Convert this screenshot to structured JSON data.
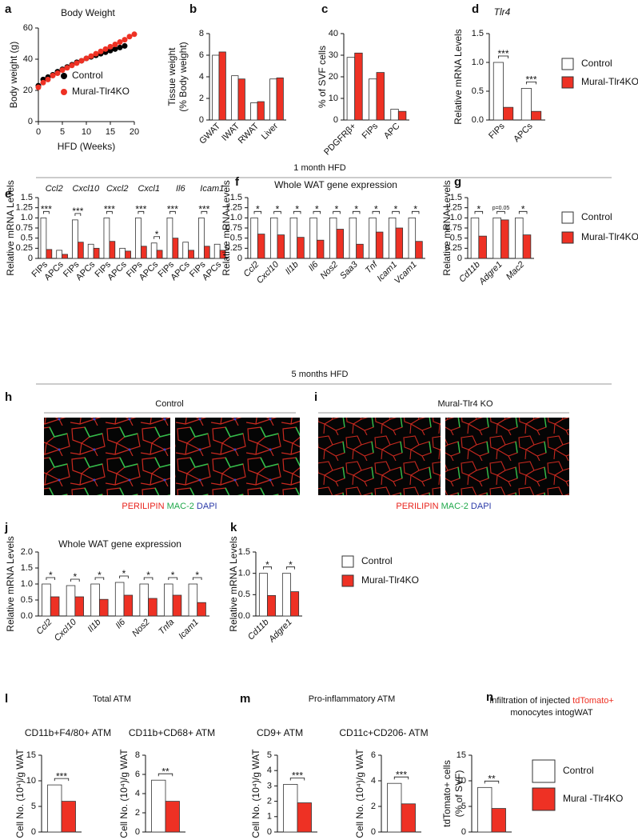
{
  "sections": [
    "1 month HFD",
    "5 months HFD"
  ],
  "images": [
    {
      "panel": "h",
      "label": "Control",
      "caption": [
        "PERILIPIN",
        "MAC-2",
        "DAPI"
      ]
    },
    {
      "panel": "i",
      "label": "Mural-Tlr4 KO",
      "caption": [
        "PERILIPIN",
        "MAC-2",
        "DAPI"
      ]
    }
  ],
  "groups": [
    {
      "panel": "l",
      "title": "Total ATM"
    },
    {
      "panel": "m",
      "title": "Pro-inflammatory ATM"
    }
  ],
  "chart_data": [
    {
      "type": "line",
      "panel": "a",
      "title": "Body Weight",
      "xlabel": "HFD (Weeks)",
      "ylabel": "Body weight (g)",
      "x": [
        0,
        1,
        2,
        3,
        4,
        5,
        6,
        7,
        8,
        9,
        10,
        11,
        12,
        13,
        14,
        15,
        16,
        17,
        18,
        19,
        20
      ],
      "xlim": [
        0,
        20
      ],
      "xticks": [
        0,
        5,
        10,
        15,
        20
      ],
      "ylim": [
        0,
        60
      ],
      "yticks": [
        0,
        20,
        40,
        60
      ],
      "series": [
        {
          "name": "Control",
          "color": "#000000",
          "values": [
            23,
            27,
            28.5,
            30,
            32,
            33.5,
            35,
            36.5,
            38,
            39,
            40.5,
            41.5,
            42.5,
            43.5,
            44.5,
            45.5,
            46.5,
            47.5,
            48.5,
            null,
            null
          ]
        },
        {
          "name": "Mural-Tlr4KO",
          "color": "#ee3124",
          "values": [
            22,
            25,
            27,
            29.5,
            31,
            33,
            34.5,
            36,
            37.5,
            39,
            40.5,
            42,
            43.5,
            45,
            46.5,
            48,
            49.5,
            51,
            52.5,
            54.5,
            56
          ]
        }
      ]
    },
    {
      "type": "bar",
      "panel": "b",
      "ylabel": [
        "Tissue weight",
        "(% Body weight)"
      ],
      "categories": [
        "GWAT",
        "IWAT",
        "RWAT",
        "Liver"
      ],
      "ylim": [
        0,
        8
      ],
      "yticks": [
        0,
        2,
        4,
        6,
        8
      ],
      "series": [
        {
          "color": "#ffffff",
          "values": [
            6.0,
            4.1,
            1.6,
            3.8
          ]
        },
        {
          "color": "#ee3124",
          "values": [
            6.3,
            3.8,
            1.7,
            3.9
          ]
        }
      ]
    },
    {
      "type": "bar",
      "panel": "c",
      "ylabel": "% of SVF cells",
      "categories": [
        "PDGFRβ+",
        "FIPs",
        "APC"
      ],
      "ylim": [
        0,
        40
      ],
      "yticks": [
        0,
        10,
        20,
        30,
        40
      ],
      "series": [
        {
          "color": "#ffffff",
          "values": [
            29,
            19,
            5
          ]
        },
        {
          "color": "#ee3124",
          "values": [
            31,
            22,
            4
          ]
        }
      ]
    },
    {
      "type": "bar",
      "panel": "d",
      "title": "Tlr4",
      "ylabel": "Relative mRNA Levels",
      "categories": [
        "FIPs",
        "APCs"
      ],
      "significance": [
        "***",
        "***"
      ],
      "ylim": [
        0,
        1.5
      ],
      "yticks": [
        {
          "value": 0,
          "label": "0.0"
        },
        0.5,
        {
          "value": 1,
          "label": "1.0"
        },
        1.5
      ],
      "series": [
        {
          "name": "Control",
          "color": "#ffffff",
          "values": [
            1.0,
            0.55
          ]
        },
        {
          "name": "Mural-Tlr4KO",
          "color": "#ee3124",
          "values": [
            0.22,
            0.15
          ]
        }
      ]
    },
    {
      "type": "bar",
      "panel": "e",
      "ylabel": "Relative mRNA Levels",
      "groups": [
        "Ccl2",
        "Cxcl10",
        "Cxcl2",
        "Cxcl1",
        "Il6",
        "Icam1"
      ],
      "categories": [
        "FIPs",
        "APCs",
        "FIPs",
        "APCs",
        "FIPs",
        "APCs",
        "FIPs",
        "APCs",
        "FIPs",
        "APCs",
        "FIPs",
        "APCs"
      ],
      "significance": [
        "***",
        null,
        "***",
        null,
        "***",
        null,
        "***",
        "*",
        "***",
        null,
        "***",
        null
      ],
      "ylim": [
        0,
        1.5
      ],
      "yticks": [
        0,
        0.25,
        0.5,
        0.75,
        {
          "value": 1,
          "label": "1.0"
        },
        1.25,
        1.5
      ],
      "series": [
        {
          "color": "#ffffff",
          "values": [
            1.0,
            0.2,
            0.95,
            0.35,
            1.0,
            0.25,
            1.0,
            0.38,
            1.0,
            0.4,
            1.0,
            0.35
          ]
        },
        {
          "color": "#ee3124",
          "values": [
            0.22,
            0.1,
            0.4,
            0.25,
            0.42,
            0.18,
            0.3,
            0.2,
            0.5,
            0.2,
            0.3,
            0.2
          ]
        }
      ]
    },
    {
      "type": "bar",
      "panel": "f",
      "title": "Whole WAT gene expression",
      "ylabel": "Relative mRNA Levels",
      "categories": [
        "Ccl2",
        "Cxcl10",
        "Il1b",
        "Il6",
        "Nos2",
        "Saa3",
        "Tnf",
        "Icam1",
        "Vcam1"
      ],
      "significance": [
        "*",
        "*",
        "*",
        "*",
        "*",
        "*",
        "*",
        "*",
        "*"
      ],
      "ylim": [
        0,
        1.5
      ],
      "yticks": [
        0,
        0.25,
        0.5,
        0.75,
        {
          "value": 1,
          "label": "1.0"
        },
        1.25,
        1.5
      ],
      "series": [
        {
          "color": "#ffffff",
          "values": [
            1.0,
            1.0,
            1.0,
            1.0,
            1.0,
            1.0,
            1.0,
            1.0,
            1.0
          ]
        },
        {
          "color": "#ee3124",
          "values": [
            0.6,
            0.58,
            0.52,
            0.45,
            0.72,
            0.35,
            0.65,
            0.75,
            0.42
          ]
        }
      ]
    },
    {
      "type": "bar",
      "panel": "g",
      "ylabel": "Relative mRNA Levels",
      "categories": [
        "Cd11b",
        "Adgre1",
        "Mac2"
      ],
      "significance": [
        "*",
        "p=0.05",
        "*"
      ],
      "ylim": [
        0,
        1.5
      ],
      "yticks": [
        0,
        0.25,
        0.5,
        0.75,
        {
          "value": 1,
          "label": "1.0"
        },
        1.25,
        1.5
      ],
      "series": [
        {
          "name": "Control",
          "color": "#ffffff",
          "values": [
            1.0,
            1.0,
            1.0
          ]
        },
        {
          "name": "Mural-Tlr4KO",
          "color": "#ee3124",
          "values": [
            0.55,
            0.95,
            0.58
          ]
        }
      ]
    },
    {
      "type": "bar",
      "panel": "j",
      "title": "Whole WAT gene expression",
      "ylabel": "Relative mRNA Levels",
      "categories": [
        "Ccl2",
        "Cxcl10",
        "Il1b",
        "Il6",
        "Nos2",
        "Tnfa",
        "Icam1"
      ],
      "significance": [
        "*",
        "*",
        "*",
        "*",
        "*",
        "*",
        "*"
      ],
      "ylim": [
        0,
        2
      ],
      "yticks": [
        {
          "value": 0,
          "label": "0.0"
        },
        0.5,
        {
          "value": 1,
          "label": "1.0"
        },
        1.5,
        {
          "value": 2,
          "label": "2.0"
        }
      ],
      "series": [
        {
          "color": "#ffffff",
          "values": [
            1.0,
            0.95,
            1.0,
            1.05,
            1.0,
            1.0,
            1.0
          ]
        },
        {
          "color": "#ee3124",
          "values": [
            0.6,
            0.6,
            0.52,
            0.65,
            0.55,
            0.65,
            0.42
          ]
        }
      ]
    },
    {
      "type": "bar",
      "panel": "k",
      "ylabel": "Relative mRNA Levels",
      "categories": [
        "Cd11b",
        "Adgre1"
      ],
      "significance": [
        "*",
        "*"
      ],
      "ylim": [
        0,
        1.5
      ],
      "yticks": [
        {
          "value": 0,
          "label": "0.0"
        },
        0.5,
        {
          "value": 1,
          "label": "1.0"
        },
        1.5
      ],
      "series": [
        {
          "name": "Control",
          "color": "#ffffff",
          "values": [
            1.0,
            1.0
          ]
        },
        {
          "name": "Mural-Tlr4KO",
          "color": "#ee3124",
          "values": [
            0.48,
            0.57
          ]
        }
      ]
    },
    {
      "type": "bar",
      "title": "CD11b+F4/80+ ATM",
      "ylabel": "Cell No. (10⁴)/g WAT",
      "categories": [
        null
      ],
      "significance": [
        "***"
      ],
      "ylim": [
        0,
        15
      ],
      "yticks": [
        0,
        5,
        10,
        15
      ],
      "series": [
        {
          "color": "#ffffff",
          "values": [
            9.2
          ]
        },
        {
          "color": "#ee3124",
          "values": [
            6.0
          ]
        }
      ]
    },
    {
      "type": "bar",
      "title": "CD11b+CD68+ ATM",
      "ylabel": "Cell No. (10⁴)/g WAT",
      "categories": [
        null
      ],
      "significance": [
        "**"
      ],
      "ylim": [
        0,
        8
      ],
      "yticks": [
        0,
        2,
        4,
        6,
        8
      ],
      "series": [
        {
          "color": "#ffffff",
          "values": [
            5.4
          ]
        },
        {
          "color": "#ee3124",
          "values": [
            3.2
          ]
        }
      ]
    },
    {
      "type": "bar",
      "title": "CD9+ ATM",
      "ylabel": "Cell No. (10⁴)/g WAT",
      "categories": [
        null
      ],
      "significance": [
        "***"
      ],
      "ylim": [
        0,
        5
      ],
      "yticks": [
        0,
        1,
        2,
        3,
        4,
        5
      ],
      "series": [
        {
          "color": "#ffffff",
          "values": [
            3.1
          ]
        },
        {
          "color": "#ee3124",
          "values": [
            1.9
          ]
        }
      ]
    },
    {
      "type": "bar",
      "title": "CD11c+CD206- ATM",
      "ylabel": "Cell No. (10⁴)/g WAT",
      "categories": [
        null
      ],
      "significance": [
        "***"
      ],
      "ylim": [
        0,
        6
      ],
      "yticks": [
        0,
        2,
        4,
        6
      ],
      "series": [
        {
          "color": "#ffffff",
          "values": [
            3.8
          ]
        },
        {
          "color": "#ee3124",
          "values": [
            2.2
          ]
        }
      ]
    },
    {
      "type": "bar",
      "panel": "n",
      "title_lines": [
        "Infiltration of injected",
        "tdTomato+",
        "monocytes intogWAT"
      ],
      "ylabel": [
        "tdTomato+ cells",
        "(% of SVF)"
      ],
      "categories": [
        null
      ],
      "significance": [
        "**"
      ],
      "ylim": [
        0,
        15
      ],
      "yticks": [
        0,
        5,
        10,
        15
      ],
      "series": [
        {
          "name": "Control",
          "color": "#ffffff",
          "values": [
            8.7
          ]
        },
        {
          "name": "Mural -Tlr4KO",
          "color": "#ee3124",
          "values": [
            4.6
          ]
        }
      ]
    }
  ]
}
